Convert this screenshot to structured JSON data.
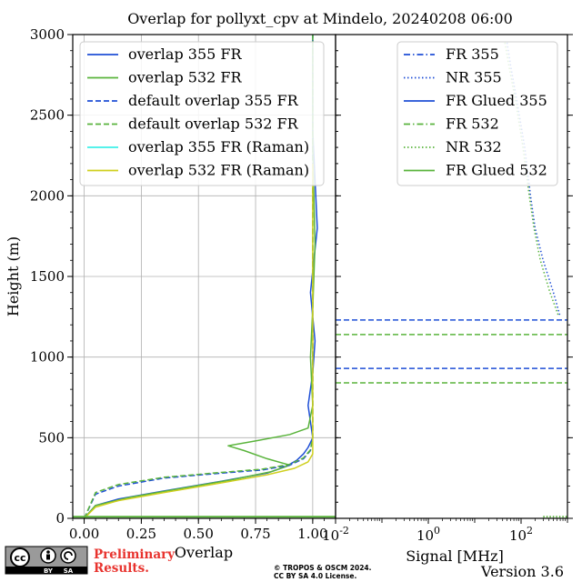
{
  "chart_data": [
    {
      "type": "line",
      "title": "Overlap for pollyxt_cpv at Mindelo, 20240208 06:00",
      "xlabel": "Overlap",
      "ylabel": "Height (m)",
      "xlim": [
        -0.05,
        1.1
      ],
      "ylim": [
        0,
        3000
      ],
      "xticks": [
        "0.00",
        "0.25",
        "0.50",
        "0.75",
        "1.00"
      ],
      "yticks": [
        "0",
        "500",
        "1000",
        "1500",
        "2000",
        "2500",
        "3000"
      ],
      "grid": true,
      "legend_position": "upper-right",
      "series": [
        {
          "name": "overlap 355 FR",
          "color": "#1f4fd6",
          "style": "solid",
          "x": [
            0.0,
            0.05,
            0.15,
            0.35,
            0.6,
            0.8,
            0.88,
            0.93,
            0.96,
            0.98,
            0.99,
            1.0,
            0.98,
            1.0,
            1.01,
            0.99,
            1.02,
            1.0,
            1.0
          ],
          "y": [
            0,
            80,
            120,
            170,
            230,
            280,
            320,
            360,
            400,
            440,
            470,
            500,
            700,
            900,
            1100,
            1400,
            1800,
            2400,
            3000
          ]
        },
        {
          "name": "overlap 532 FR",
          "color": "#5ab43c",
          "style": "solid",
          "x": [
            0.0,
            0.05,
            0.2,
            0.4,
            0.65,
            0.82,
            0.9,
            0.8,
            0.7,
            0.63,
            0.75,
            0.9,
            0.98,
            1.0,
            0.99,
            1.0,
            1.01,
            1.0,
            1.0
          ],
          "y": [
            0,
            80,
            130,
            180,
            240,
            290,
            330,
            370,
            420,
            450,
            480,
            520,
            560,
            700,
            1000,
            1300,
            1700,
            2300,
            3000
          ]
        },
        {
          "name": "default overlap 355 FR",
          "color": "#1f4fd6",
          "style": "dashed",
          "x": [
            0.0,
            0.05,
            0.15,
            0.35,
            0.6,
            0.78,
            0.9,
            0.96,
            0.99,
            1.0,
            1.0
          ],
          "y": [
            0,
            150,
            200,
            250,
            280,
            300,
            330,
            370,
            420,
            500,
            3000
          ]
        },
        {
          "name": "default overlap 532 FR",
          "color": "#5ab43c",
          "style": "dashed",
          "x": [
            0.0,
            0.05,
            0.15,
            0.35,
            0.6,
            0.78,
            0.9,
            0.96,
            0.99,
            1.0,
            1.0
          ],
          "y": [
            0,
            160,
            210,
            255,
            285,
            305,
            335,
            375,
            425,
            505,
            3000
          ]
        },
        {
          "name": "overlap 355 FR (Raman)",
          "color": "#3ef0e8",
          "style": "solid",
          "x": [],
          "y": []
        },
        {
          "name": "overlap 532 FR (Raman)",
          "color": "#cfcf1e",
          "style": "solid",
          "x": [
            0.0,
            0.05,
            0.15,
            0.35,
            0.6,
            0.8,
            0.92,
            0.98,
            1.0,
            1.0,
            1.0,
            1.0
          ],
          "y": [
            0,
            70,
            110,
            160,
            220,
            270,
            310,
            350,
            400,
            500,
            1000,
            2200
          ]
        }
      ]
    },
    {
      "type": "line",
      "xlabel": "Signal [MHz]",
      "xscale": "log",
      "xlim": [
        0.01,
        1000
      ],
      "xticks": [
        "10^-2",
        "10^0",
        "10^2"
      ],
      "ylim": [
        0,
        3000
      ],
      "legend_position": "upper-right",
      "series": [
        {
          "name": "FR 355",
          "color": "#1f4fd6",
          "style": "dashdot",
          "x": [],
          "y": []
        },
        {
          "name": "NR 355",
          "color": "#1f4fd6",
          "style": "dotted",
          "x": [
            50,
            60,
            80,
            120,
            160,
            200,
            300,
            500,
            700
          ],
          "y": [
            2950,
            2800,
            2600,
            2300,
            2000,
            1800,
            1600,
            1400,
            1250
          ]
        },
        {
          "name": "FR Glued 355",
          "color": "#1f4fd6",
          "style": "solid",
          "x": [],
          "y": []
        },
        {
          "name": "FR 532",
          "color": "#5ab43c",
          "style": "dashdot",
          "x": [],
          "y": []
        },
        {
          "name": "NR 532",
          "color": "#5ab43c",
          "style": "dotted",
          "x": [
            45,
            55,
            75,
            110,
            150,
            190,
            260,
            420,
            650
          ],
          "y": [
            2950,
            2800,
            2600,
            2300,
            2000,
            1800,
            1600,
            1400,
            1250
          ]
        },
        {
          "name": "FR Glued 532",
          "color": "#5ab43c",
          "style": "solid",
          "x": [],
          "y": []
        }
      ],
      "hlines": [
        {
          "y": 1230,
          "color": "#1f4fd6"
        },
        {
          "y": 930,
          "color": "#1f4fd6"
        },
        {
          "y": 1140,
          "color": "#5ab43c"
        },
        {
          "y": 840,
          "color": "#5ab43c"
        }
      ]
    }
  ],
  "footer": {
    "cc_label": "cc",
    "by_label": "BY",
    "sa_label": "SA",
    "preliminary_line1": "Preliminary",
    "preliminary_line2": "Results.",
    "copyright_line1": "© TROPOS & OSCM 2024.",
    "copyright_line2": "CC BY SA 4.0 License.",
    "version": "Version 3.6"
  }
}
